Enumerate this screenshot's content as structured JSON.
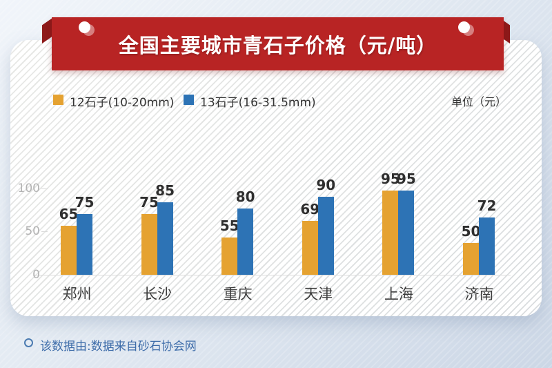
{
  "banner": {
    "title": "全国主要城市青石子价格（元/吨）"
  },
  "legend": {
    "series1_label": "12石子(10-20mm)",
    "series2_label": "13石子(16-31.5mm)",
    "unit_label": "单位（元）"
  },
  "chart_data": {
    "type": "bar",
    "title": "全国主要城市青石子价格（元/吨）",
    "categories": [
      "郑州",
      "长沙",
      "重庆",
      "天津",
      "上海",
      "济南"
    ],
    "series": [
      {
        "name": "12石子(10-20mm)",
        "color": "#e5a231",
        "values": [
          65,
          75,
          55,
          69,
          95,
          50
        ]
      },
      {
        "name": "13石子(16-31.5mm)",
        "color": "#2d73b5",
        "values": [
          75,
          85,
          80,
          90,
          95,
          72
        ]
      }
    ],
    "yticks": [
      0,
      50,
      100
    ],
    "ylim": [
      0,
      110
    ],
    "ylabel": "单位（元）",
    "grid": "baseline-only",
    "legend_position": "top-left",
    "value_labels": "above-bars"
  },
  "footer": {
    "source": "该数据由:数据来自砂石协会网"
  },
  "colors": {
    "ribbon_red": "#b82424",
    "ribbon_fold_dark_red": "#8e1a1a",
    "series1_yellow": "#e5a231",
    "series2_blue": "#2d73b5",
    "axis_text_gray": "#b3b3b3",
    "footer_blue": "#3d6ca9",
    "background_blue_gray": "#ccd7e6"
  }
}
